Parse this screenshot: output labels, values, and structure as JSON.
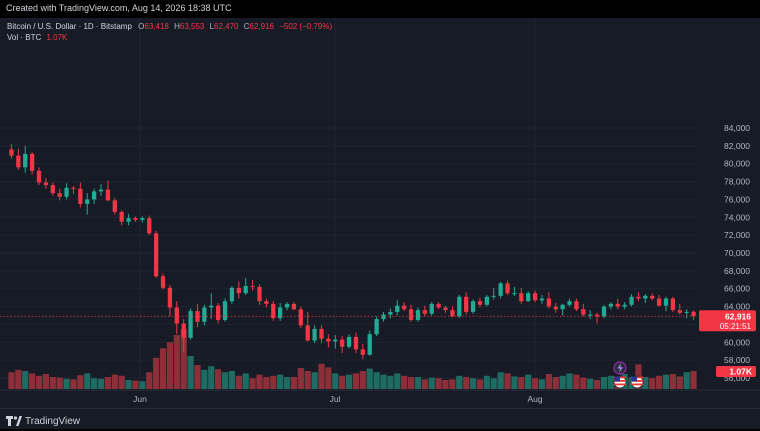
{
  "header": {
    "created_text": "Created with TradingView.com, Aug 14, 2026 18:38 UTC"
  },
  "legend": {
    "symbol": "Bitcoin / U.S. Dollar · 1D · Bitstamp",
    "o_label": "O",
    "o": "63,418",
    "h_label": "H",
    "h": "63,553",
    "l_label": "L",
    "l": "62,470",
    "c_label": "C",
    "c": "62,916",
    "change": "−502 (−0.79%)",
    "vol_label": "Vol · BTC",
    "vol_value": "1.07K"
  },
  "price_scale": {
    "tick_labels": [
      "84,000",
      "82,000",
      "80,000",
      "78,000",
      "76,000",
      "74,000",
      "72,000",
      "70,000",
      "68,000",
      "66,000",
      "64,000",
      "62,000",
      "60,000",
      "58,000",
      "56,000"
    ],
    "last_price_label": "62,916",
    "countdown_label": "05:21:51",
    "volume_label": "1.07K"
  },
  "time_scale": {
    "tick_labels": [
      "Jun",
      "Jul",
      "Aug"
    ]
  },
  "footer": {
    "brand": "TradingView"
  },
  "colors": {
    "up": "#22ab94",
    "down": "#f23645",
    "up_vol": "#1e6b62",
    "down_vol": "#8c2f39",
    "background": "#171b26",
    "grid": "#202431"
  },
  "icons": {
    "event_flash": "lightning-icon",
    "flags": [
      "us-flag-icon",
      "us-flag-icon"
    ]
  },
  "chart_data": {
    "type": "candlestick",
    "title": "Bitcoin / U.S. Dollar · 1D · Bitstamp",
    "ylim": [
      55000,
      85000
    ],
    "y_ticks": [
      84000,
      82000,
      80000,
      78000,
      76000,
      74000,
      72000,
      70000,
      68000,
      66000,
      64000,
      62000,
      60000,
      58000,
      56000
    ],
    "x_ticks": [
      "Jun",
      "Jul",
      "Aug"
    ],
    "series": [
      {
        "columns": [
          "open",
          "high",
          "low",
          "close",
          "volume_rel"
        ],
        "candles": [
          [
            81600,
            82200,
            80600,
            80900,
            0.28
          ],
          [
            80900,
            81700,
            79300,
            79600,
            0.32
          ],
          [
            79600,
            82000,
            79000,
            81100,
            0.3
          ],
          [
            81100,
            81300,
            78800,
            79200,
            0.26
          ],
          [
            79200,
            79600,
            77600,
            77900,
            0.22
          ],
          [
            77900,
            78400,
            77200,
            77600,
            0.25
          ],
          [
            77600,
            77900,
            76400,
            76700,
            0.2
          ],
          [
            76700,
            77200,
            75900,
            76300,
            0.19
          ],
          [
            76300,
            77800,
            76000,
            77300,
            0.17
          ],
          [
            77300,
            77500,
            76600,
            77200,
            0.16
          ],
          [
            77200,
            77900,
            75100,
            75500,
            0.23
          ],
          [
            75500,
            76700,
            74300,
            76000,
            0.26
          ],
          [
            76000,
            77200,
            75500,
            76900,
            0.18
          ],
          [
            76900,
            77700,
            76400,
            77100,
            0.17
          ],
          [
            77100,
            78100,
            75800,
            75900,
            0.2
          ],
          [
            75900,
            76200,
            74300,
            74600,
            0.24
          ],
          [
            74600,
            74800,
            73100,
            73500,
            0.22
          ],
          [
            73500,
            74400,
            73100,
            73900,
            0.15
          ],
          [
            73900,
            74100,
            73500,
            73700,
            0.14
          ],
          [
            73700,
            74100,
            73400,
            73900,
            0.13
          ],
          [
            73900,
            74200,
            72000,
            72200,
            0.28
          ],
          [
            72200,
            72500,
            67200,
            67400,
            0.52
          ],
          [
            67400,
            67700,
            65900,
            66100,
            0.68
          ],
          [
            66100,
            66400,
            62900,
            63900,
            0.78
          ],
          [
            63900,
            64600,
            60900,
            62100,
            0.9
          ],
          [
            62100,
            62600,
            58900,
            60500,
            1.0
          ],
          [
            60500,
            63800,
            60300,
            63500,
            0.55
          ],
          [
            63500,
            64300,
            61700,
            62300,
            0.4
          ],
          [
            62300,
            64200,
            61900,
            63900,
            0.32
          ],
          [
            63900,
            65500,
            62600,
            64100,
            0.38
          ],
          [
            64100,
            64400,
            62100,
            62500,
            0.33
          ],
          [
            62500,
            64900,
            62300,
            64600,
            0.28
          ],
          [
            64600,
            66300,
            64300,
            66100,
            0.3
          ],
          [
            66100,
            66800,
            64900,
            65500,
            0.22
          ],
          [
            65500,
            67200,
            65300,
            66300,
            0.26
          ],
          [
            66300,
            67000,
            65800,
            66200,
            0.18
          ],
          [
            66200,
            66500,
            64200,
            64600,
            0.24
          ],
          [
            64600,
            64900,
            63900,
            64300,
            0.2
          ],
          [
            64300,
            64600,
            62400,
            62700,
            0.22
          ],
          [
            62700,
            64400,
            62400,
            63900,
            0.24
          ],
          [
            63900,
            64500,
            63600,
            64300,
            0.2
          ],
          [
            64300,
            64500,
            63600,
            63700,
            0.2
          ],
          [
            63700,
            64000,
            61600,
            61900,
            0.35
          ],
          [
            61900,
            63400,
            60100,
            60200,
            0.3
          ],
          [
            60200,
            61900,
            59900,
            61500,
            0.28
          ],
          [
            61500,
            61900,
            59900,
            60400,
            0.42
          ],
          [
            60400,
            60900,
            59400,
            60100,
            0.36
          ],
          [
            60100,
            60800,
            59300,
            60300,
            0.26
          ],
          [
            60300,
            60700,
            58800,
            59500,
            0.22
          ],
          [
            59500,
            60900,
            59300,
            60600,
            0.24
          ],
          [
            60600,
            61100,
            58800,
            59200,
            0.26
          ],
          [
            59200,
            59800,
            58100,
            58600,
            0.3
          ],
          [
            58600,
            61300,
            58500,
            60900,
            0.34
          ],
          [
            60900,
            62900,
            60700,
            62600,
            0.28
          ],
          [
            62600,
            63400,
            62300,
            63100,
            0.24
          ],
          [
            63100,
            63800,
            62700,
            63400,
            0.22
          ],
          [
            63400,
            64700,
            63000,
            64100,
            0.26
          ],
          [
            64100,
            64500,
            63500,
            63700,
            0.22
          ],
          [
            63700,
            64200,
            62300,
            62500,
            0.2
          ],
          [
            62500,
            63900,
            62300,
            63600,
            0.2
          ],
          [
            63600,
            64100,
            62900,
            63200,
            0.16
          ],
          [
            63200,
            64500,
            63000,
            64300,
            0.19
          ],
          [
            64300,
            64500,
            63700,
            63900,
            0.18
          ],
          [
            63900,
            64100,
            63300,
            63600,
            0.15
          ],
          [
            63600,
            64000,
            62800,
            62900,
            0.16
          ],
          [
            62900,
            65300,
            62700,
            65100,
            0.22
          ],
          [
            65100,
            65600,
            63100,
            63400,
            0.2
          ],
          [
            63400,
            64800,
            63200,
            64600,
            0.18
          ],
          [
            64600,
            65000,
            63900,
            64200,
            0.16
          ],
          [
            64200,
            65300,
            64000,
            65100,
            0.22
          ],
          [
            65100,
            66100,
            64800,
            65200,
            0.18
          ],
          [
            65200,
            66800,
            64900,
            66600,
            0.28
          ],
          [
            66600,
            66900,
            65300,
            65500,
            0.26
          ],
          [
            65500,
            66200,
            65200,
            65500,
            0.21
          ],
          [
            65500,
            66100,
            64300,
            64600,
            0.2
          ],
          [
            64600,
            65700,
            64500,
            65500,
            0.24
          ],
          [
            65500,
            65800,
            64500,
            64700,
            0.18
          ],
          [
            64700,
            65300,
            64300,
            64900,
            0.16
          ],
          [
            64900,
            65600,
            63800,
            64000,
            0.25
          ],
          [
            64000,
            64400,
            63300,
            63700,
            0.2
          ],
          [
            63700,
            64300,
            63000,
            64200,
            0.22
          ],
          [
            64200,
            64900,
            64000,
            64600,
            0.26
          ],
          [
            64600,
            64900,
            63500,
            63700,
            0.24
          ],
          [
            63700,
            64300,
            62900,
            63100,
            0.19
          ],
          [
            63100,
            63600,
            62600,
            63100,
            0.17
          ],
          [
            63100,
            63300,
            62100,
            62900,
            0.15
          ],
          [
            62900,
            64200,
            62700,
            64000,
            0.2
          ],
          [
            64000,
            64500,
            63700,
            64300,
            0.22
          ],
          [
            64300,
            64900,
            63700,
            64000,
            0.18
          ],
          [
            64000,
            64500,
            63700,
            64200,
            0.25
          ],
          [
            64200,
            65400,
            64000,
            65100,
            0.19
          ],
          [
            65100,
            65600,
            64600,
            64900,
            0.41
          ],
          [
            64900,
            65400,
            64400,
            65200,
            0.2
          ],
          [
            65200,
            65500,
            64700,
            64900,
            0.18
          ],
          [
            64900,
            65300,
            64000,
            64100,
            0.22
          ],
          [
            64100,
            65100,
            63500,
            64900,
            0.24
          ],
          [
            64900,
            65100,
            63400,
            63600,
            0.25
          ],
          [
            63600,
            64300,
            63100,
            63300,
            0.21
          ],
          [
            63300,
            63700,
            62700,
            63400,
            0.28
          ],
          [
            63418,
            63553,
            62470,
            62916,
            0.3
          ]
        ]
      }
    ]
  }
}
